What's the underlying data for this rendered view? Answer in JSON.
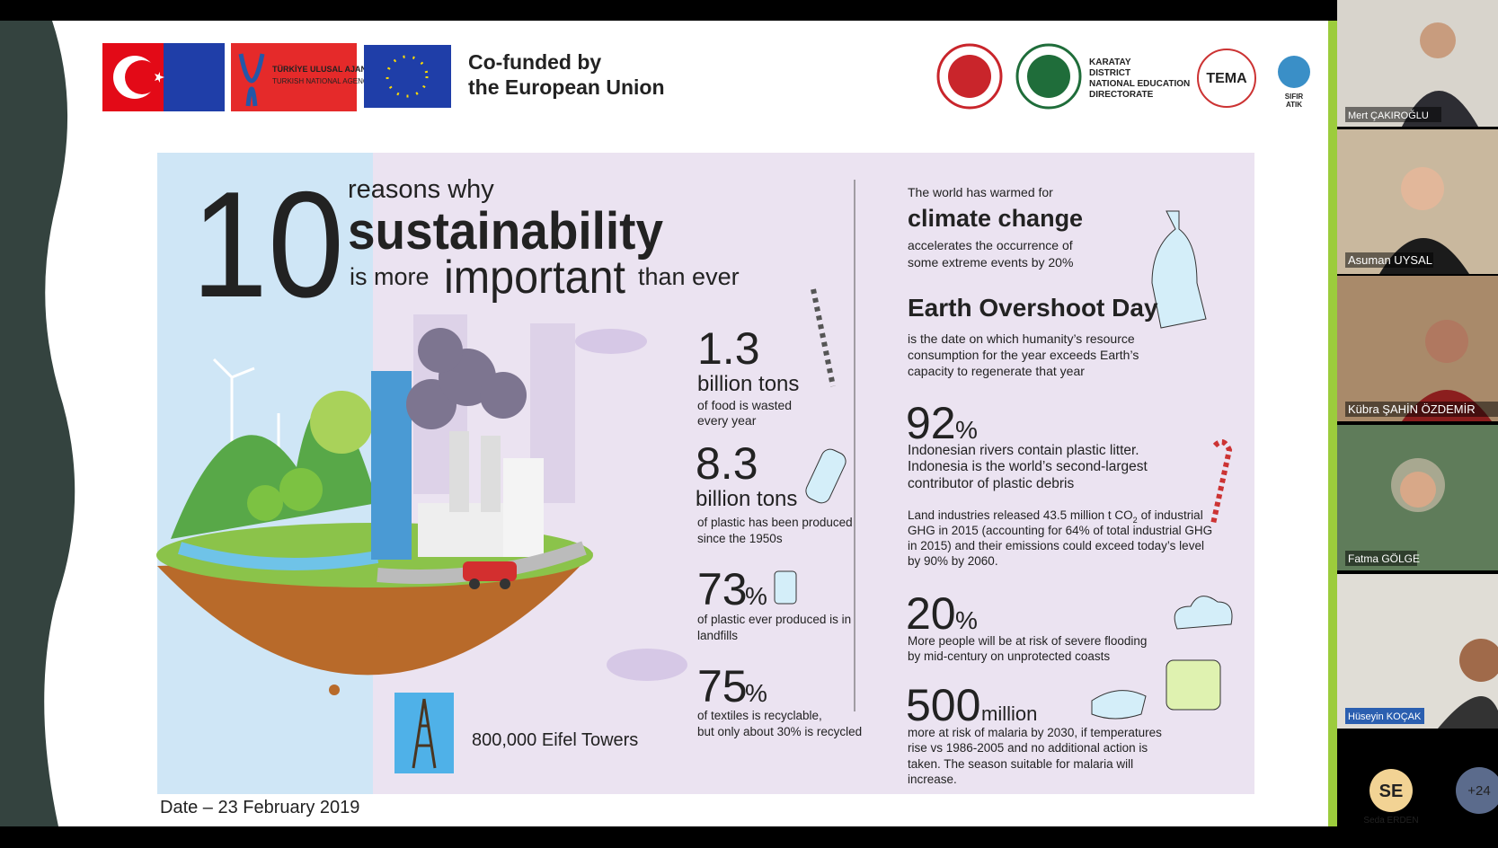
{
  "header": {
    "agency_tr": "TÜRKİYE ULUSAL AJANSI",
    "agency_en": "TURKISH NATIONAL AGENCY",
    "cofunded": [
      "Co-funded by",
      "the European Union"
    ],
    "directorate": [
      "KARATAY",
      "DISTRICT",
      "NATIONAL EDUCATION",
      "DIRECTORATE"
    ],
    "tema": "TEMA",
    "sifir": [
      "SIFIR",
      "ATIK"
    ]
  },
  "slide": {
    "big_number": "10",
    "title": {
      "line1": "reasons why",
      "line2": "sustainability",
      "line3a": "is more",
      "line3b": "important",
      "line3c": "than ever"
    },
    "left_stats": [
      {
        "number": "1.3",
        "unit": "billion tons",
        "text": [
          "of food is wasted",
          "every year"
        ]
      },
      {
        "number": "8.3",
        "unit": "billion tons",
        "text": [
          "of plastic has been produced",
          "since the 1950s"
        ]
      },
      {
        "number": "73",
        "unit": "%",
        "text": [
          "of plastic ever produced is in",
          "landfills"
        ]
      },
      {
        "number": "75",
        "unit": "%",
        "text": [
          "of textiles is recyclable,",
          "but only about 30% is recycled"
        ]
      }
    ],
    "eiffel": "800,000 Eifel Towers",
    "climate": {
      "intro": "The world has warmed for",
      "heading": "climate change",
      "text": [
        "accelerates the occurrence of",
        "some extreme events by 20%"
      ]
    },
    "overshoot": {
      "heading": "Earth Overshoot Day",
      "text": [
        "is the date on which humanity’s resource",
        "consumption for the year exceeds Earth’s",
        "capacity to regenerate that year"
      ]
    },
    "stat_92": {
      "number": "92",
      "unit": "%",
      "text": [
        "Indonesian rivers contain plastic litter.",
        "Indonesia is the world’s second-largest",
        "contributor of plastic debris"
      ]
    },
    "land": {
      "line1a": "Land industries released 43.5 million t CO",
      "line1sub": "2",
      "line1b": "of industrial",
      "lines": [
        "GHG in 2015 (accounting for 64% of total industrial GHG",
        "in 2015) and their emissions could exceed today’s level",
        "by 90% by 2060."
      ]
    },
    "stat_20": {
      "number": "20",
      "unit": "%",
      "text": [
        "More people will be at risk of severe flooding",
        "by mid-century on unprotected coasts"
      ]
    },
    "stat_500": {
      "number": "500",
      "unit": "million",
      "text": [
        "more at risk of malaria by 2030, if temperatures",
        "rise vs 1986-2005 and no additional action is",
        "taken. The season suitable for malaria will",
        "increase."
      ]
    },
    "date": "Date – 23 February 2019"
  },
  "participants": [
    "Mert ÇAKIROĞLU",
    "Asuman UYSAL",
    "Kübra ŞAHİN ÖZDEMİR",
    "Fatma GÖLGE",
    "Hüseyin KOÇAK",
    "Seda ERDEN"
  ],
  "avatar": "SE",
  "more": "+24"
}
